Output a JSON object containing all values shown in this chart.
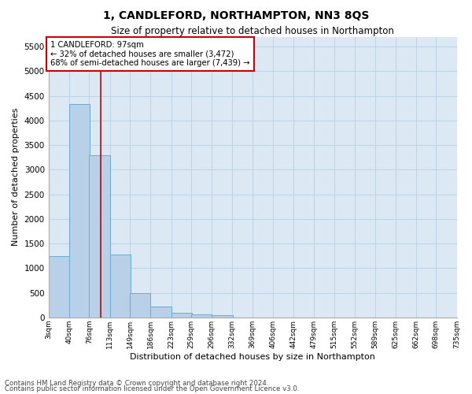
{
  "title": "1, CANDLEFORD, NORTHAMPTON, NN3 8QS",
  "subtitle": "Size of property relative to detached houses in Northampton",
  "xlabel": "Distribution of detached houses by size in Northampton",
  "ylabel": "Number of detached properties",
  "footnote1": "Contains HM Land Registry data © Crown copyright and database right 2024.",
  "footnote2": "Contains public sector information licensed under the Open Government Licence v3.0.",
  "annotation_line1": "1 CANDLEFORD: 97sqm",
  "annotation_line2": "← 32% of detached houses are smaller (3,472)",
  "annotation_line3": "68% of semi-detached houses are larger (7,439) →",
  "property_size": 97,
  "bar_color": "#b8d0e8",
  "bar_edge_color": "#6aaad4",
  "vline_color": "#cc0000",
  "background_color": "#dce9f5",
  "categories": [
    "3sqm",
    "40sqm",
    "76sqm",
    "113sqm",
    "149sqm",
    "186sqm",
    "223sqm",
    "259sqm",
    "296sqm",
    "332sqm",
    "369sqm",
    "406sqm",
    "442sqm",
    "479sqm",
    "515sqm",
    "552sqm",
    "589sqm",
    "625sqm",
    "662sqm",
    "698sqm",
    "735sqm"
  ],
  "bin_edges": [
    3,
    40,
    76,
    113,
    149,
    186,
    223,
    259,
    296,
    332,
    369,
    406,
    442,
    479,
    515,
    552,
    589,
    625,
    662,
    698,
    735
  ],
  "bar_heights": [
    1250,
    4330,
    3300,
    1270,
    490,
    220,
    90,
    65,
    50,
    0,
    0,
    0,
    0,
    0,
    0,
    0,
    0,
    0,
    0,
    0
  ],
  "ylim": [
    0,
    5700
  ],
  "yticks": [
    0,
    500,
    1000,
    1500,
    2000,
    2500,
    3000,
    3500,
    4000,
    4500,
    5000,
    5500
  ],
  "grid_color": "#c0d4e8"
}
